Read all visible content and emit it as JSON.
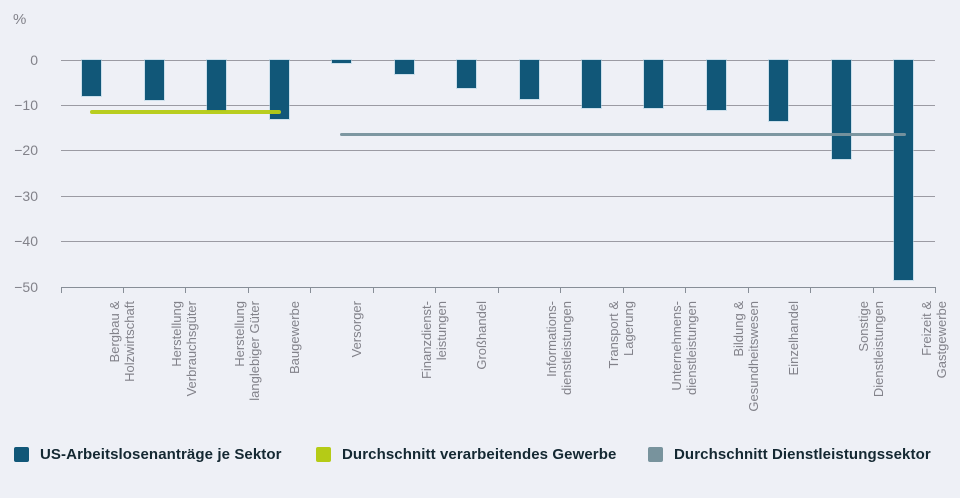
{
  "chart_data": {
    "type": "bar",
    "title": "",
    "ylabel": "%",
    "ylim": [
      -50,
      0
    ],
    "y_ticks": [
      "0",
      "−10",
      "−20",
      "−30",
      "−40",
      "−50"
    ],
    "grid": "horizontal",
    "legend_position": "bottom",
    "series_name": "US-Arbeitslosenanträge je Sektor",
    "categories": [
      "Bergbau &\nHolzwirtschaft",
      "Herstellung\nVerbrauchsgüter",
      "Herstellung\nlanglebiger Güter",
      "Baugewerbe",
      "Versorger",
      "Finanzdienst-\nleistungen",
      "Großhandel",
      "Informations-\ndienstleistungen",
      "Transport &\nLagerung",
      "Unternehmens-\ndienstleistungen",
      "Bildung &\nGesundheitswesen",
      "Einzelhandel",
      "Sonstige\nDienstleistungen",
      "Freizeit &\nGastgewerbe"
    ],
    "values": [
      -8.1,
      -8.9,
      -11.4,
      -13.2,
      -0.7,
      -3.1,
      -6.2,
      -8.7,
      -10.7,
      -10.6,
      -11.2,
      -13.5,
      -22.0,
      -48.6
    ],
    "reference_lines": [
      {
        "label": "Durchschnitt verarbeitendes Gewerbe",
        "value": -11.5,
        "from_category": 0,
        "to_category": 3,
        "color_key": "avg_manufacturing_line"
      },
      {
        "label": "Durchschnitt Dienstleistungssektor",
        "value": -16.4,
        "from_category": 4,
        "to_category": 13,
        "color_key": "avg_services_line"
      }
    ]
  },
  "legend": {
    "claims": "US-Arbeitslosenanträge je Sektor",
    "avg_manufacturing": "Durchschnitt verarbeitendes Gewerbe",
    "avg_services": "Durchschnitt Dienstleistungssektor"
  },
  "colors": {
    "bar": "#115778",
    "avg_manufacturing_line": "#b5cb16",
    "avg_services_line": "#78939d",
    "background": "#eef0f6",
    "gridline": "#9b9ba3",
    "axis_text": "#82828a",
    "legend_text": "#142832"
  }
}
